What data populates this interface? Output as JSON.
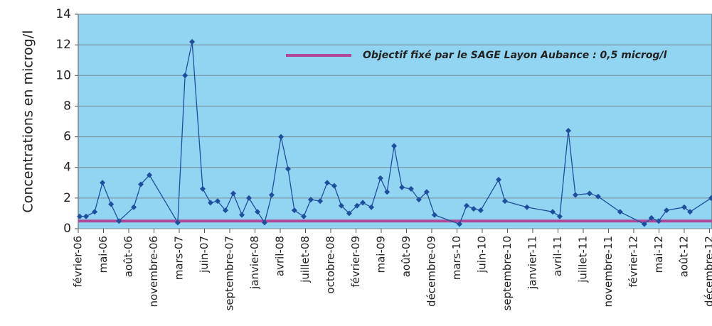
{
  "chart_data": {
    "type": "line",
    "ylabel": "Concentrations en microg/l",
    "ylim": [
      0,
      14
    ],
    "yticks": [
      0,
      2,
      4,
      6,
      8,
      10,
      12,
      14
    ],
    "grid": true,
    "xlim": [
      0,
      25.1
    ],
    "xticks": [
      {
        "value": 0,
        "label": "février-06"
      },
      {
        "value": 1,
        "label": "mai-06"
      },
      {
        "value": 2,
        "label": "août-06"
      },
      {
        "value": 3,
        "label": "novembre-06"
      },
      {
        "value": 4,
        "label": "mars-07"
      },
      {
        "value": 5,
        "label": "juin-07"
      },
      {
        "value": 6,
        "label": "septembre-07"
      },
      {
        "value": 7,
        "label": "janvier-08"
      },
      {
        "value": 8,
        "label": "avril-08"
      },
      {
        "value": 9,
        "label": "juillet-08"
      },
      {
        "value": 10,
        "label": "octobre-08"
      },
      {
        "value": 11,
        "label": "février-09"
      },
      {
        "value": 12,
        "label": "mai-09"
      },
      {
        "value": 13,
        "label": "août-09"
      },
      {
        "value": 14,
        "label": "décembre-09"
      },
      {
        "value": 15,
        "label": "mars-10"
      },
      {
        "value": 16,
        "label": "juin-10"
      },
      {
        "value": 17,
        "label": "septembre-10"
      },
      {
        "value": 18,
        "label": "janvier-11"
      },
      {
        "value": 19,
        "label": "avril-11"
      },
      {
        "value": 20,
        "label": "juillet-11"
      },
      {
        "value": 21,
        "label": "novembre-11"
      },
      {
        "value": 22,
        "label": "février-12"
      },
      {
        "value": 23,
        "label": "mai-12"
      },
      {
        "value": 24,
        "label": "août-12"
      },
      {
        "value": 25,
        "label": "décembre-12"
      }
    ],
    "x": [
      0.06,
      0.31,
      0.65,
      0.96,
      1.3,
      1.61,
      2.2,
      2.48,
      2.82,
      3.94,
      4.23,
      4.51,
      4.93,
      5.24,
      5.52,
      5.83,
      6.14,
      6.48,
      6.76,
      7.1,
      7.38,
      7.66,
      8.03,
      8.31,
      8.56,
      8.93,
      9.21,
      9.58,
      9.86,
      10.14,
      10.42,
      10.73,
      11.04,
      11.27,
      11.61,
      11.97,
      12.23,
      12.51,
      12.82,
      13.18,
      13.49,
      13.8,
      14.11,
      15.1,
      15.38,
      15.66,
      15.94,
      16.65,
      16.9,
      17.77,
      18.79,
      19.07,
      19.41,
      19.69,
      20.25,
      20.59,
      21.46,
      22.42,
      22.7,
      22.99,
      23.3,
      24.0,
      24.23,
      25.07
    ],
    "series": [
      {
        "color": "#1f4e9c",
        "values": [
          0.8,
          0.8,
          1.1,
          3.0,
          1.6,
          0.5,
          1.4,
          2.9,
          3.5,
          0.4,
          10.0,
          12.2,
          2.6,
          1.7,
          1.8,
          1.2,
          2.3,
          0.9,
          2.0,
          1.1,
          0.4,
          2.2,
          6.0,
          3.9,
          1.2,
          0.8,
          1.9,
          1.8,
          3.0,
          2.8,
          1.5,
          1.0,
          1.5,
          1.7,
          1.4,
          3.3,
          2.4,
          5.4,
          2.7,
          2.6,
          1.9,
          2.4,
          0.9,
          0.3,
          1.5,
          1.3,
          1.2,
          3.2,
          1.8,
          1.4,
          1.1,
          0.8,
          6.4,
          2.2,
          2.3,
          2.1,
          1.1,
          0.3,
          0.7,
          0.5,
          1.2,
          1.4,
          1.1,
          2.0
        ]
      }
    ],
    "threshold": {
      "value": 0.5,
      "label": "Objectif fixé par le SAGE Layon Aubance : 0,5 microg/l",
      "color": "#b0489a"
    },
    "background": "#92d5f2"
  }
}
